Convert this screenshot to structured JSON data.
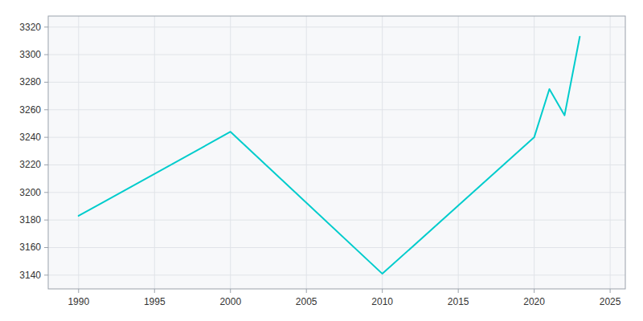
{
  "chart_data": {
    "type": "line",
    "x": [
      1990,
      2000,
      2010,
      2020,
      2021,
      2022,
      2023
    ],
    "values": [
      3183,
      3244,
      3141,
      3240,
      3275,
      3256,
      3313
    ],
    "color": "#00CCCC",
    "xlim": [
      1988,
      2026
    ],
    "ylim": [
      3130,
      3328
    ],
    "xticks": [
      1990,
      1995,
      2000,
      2005,
      2010,
      2015,
      2020,
      2025
    ],
    "yticks": [
      3140,
      3160,
      3180,
      3200,
      3220,
      3240,
      3260,
      3280,
      3300,
      3320
    ],
    "grid": true
  }
}
